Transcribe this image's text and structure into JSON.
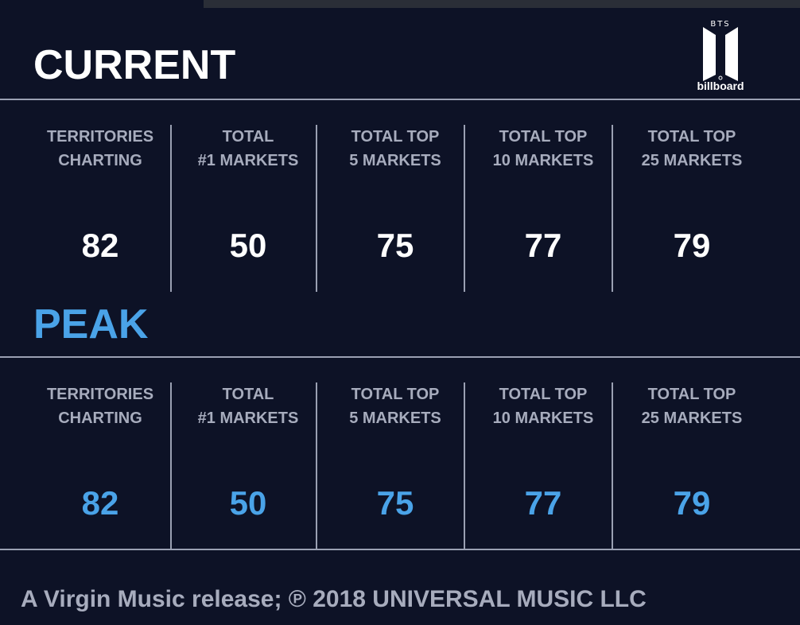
{
  "logo": {
    "bts_text": "BTS",
    "brand_text": "billboard"
  },
  "current": {
    "title": "CURRENT",
    "stats": [
      {
        "label": "TERRITORIES\nCHARTING",
        "value": "82"
      },
      {
        "label": "TOTAL\n#1 MARKETS",
        "value": "50"
      },
      {
        "label": "TOTAL TOP\n5 MARKETS",
        "value": "75"
      },
      {
        "label": "TOTAL TOP\n10 MARKETS",
        "value": "77"
      },
      {
        "label": "TOTAL TOP\n25 MARKETS",
        "value": "79"
      }
    ]
  },
  "peak": {
    "title": "PEAK",
    "stats": [
      {
        "label": "TERRITORIES\nCHARTING",
        "value": "82"
      },
      {
        "label": "TOTAL\n#1 MARKETS",
        "value": "50"
      },
      {
        "label": "TOTAL TOP\n5 MARKETS",
        "value": "75"
      },
      {
        "label": "TOTAL TOP\n10 MARKETS",
        "value": "77"
      },
      {
        "label": "TOTAL TOP\n25 MARKETS",
        "value": "79"
      }
    ]
  },
  "footer": {
    "text": "A Virgin Music release; ℗ 2018 UNIVERSAL MUSIC LLC"
  },
  "colors": {
    "background": "#0d1226",
    "label": "#a7acbd",
    "peak_accent": "#4aa3e8",
    "current_value": "#ffffff"
  }
}
